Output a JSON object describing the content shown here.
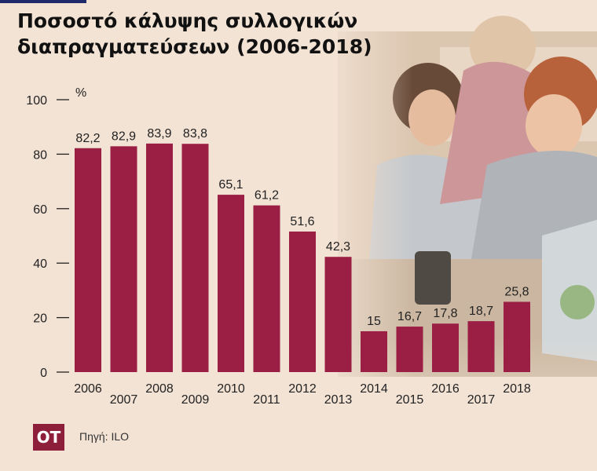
{
  "title": "Ποσοστό κάλυψης συλλογικών διαπραγματεύσεων (2006-2018)",
  "source": "Πηγή: ILO",
  "logo": "OT",
  "colors": {
    "bar": "#9b1f45",
    "background": "#f3e3d5"
  },
  "chart_data": {
    "type": "bar",
    "title": "Ποσοστό κάλυψης συλλογικών διαπραγματεύσεων (2006-2018)",
    "ylabel": "%",
    "xlabel": "",
    "ylim": [
      0,
      100
    ],
    "yticks": [
      0,
      20,
      40,
      60,
      80,
      100
    ],
    "grid": false,
    "categories": [
      "2006",
      "2007",
      "2008",
      "2009",
      "2010",
      "2011",
      "2012",
      "2013",
      "2014",
      "2015",
      "2016",
      "2017",
      "2018"
    ],
    "values": [
      82.2,
      82.9,
      83.9,
      83.8,
      65.1,
      61.2,
      51.6,
      42.3,
      15,
      16.7,
      17.8,
      18.7,
      25.8
    ],
    "value_labels": [
      "82,2",
      "82,9",
      "83,9",
      "83,8",
      "65,1",
      "61,2",
      "51,6",
      "42,3",
      "15",
      "16,7",
      "17,8",
      "18,7",
      "25,8"
    ]
  }
}
